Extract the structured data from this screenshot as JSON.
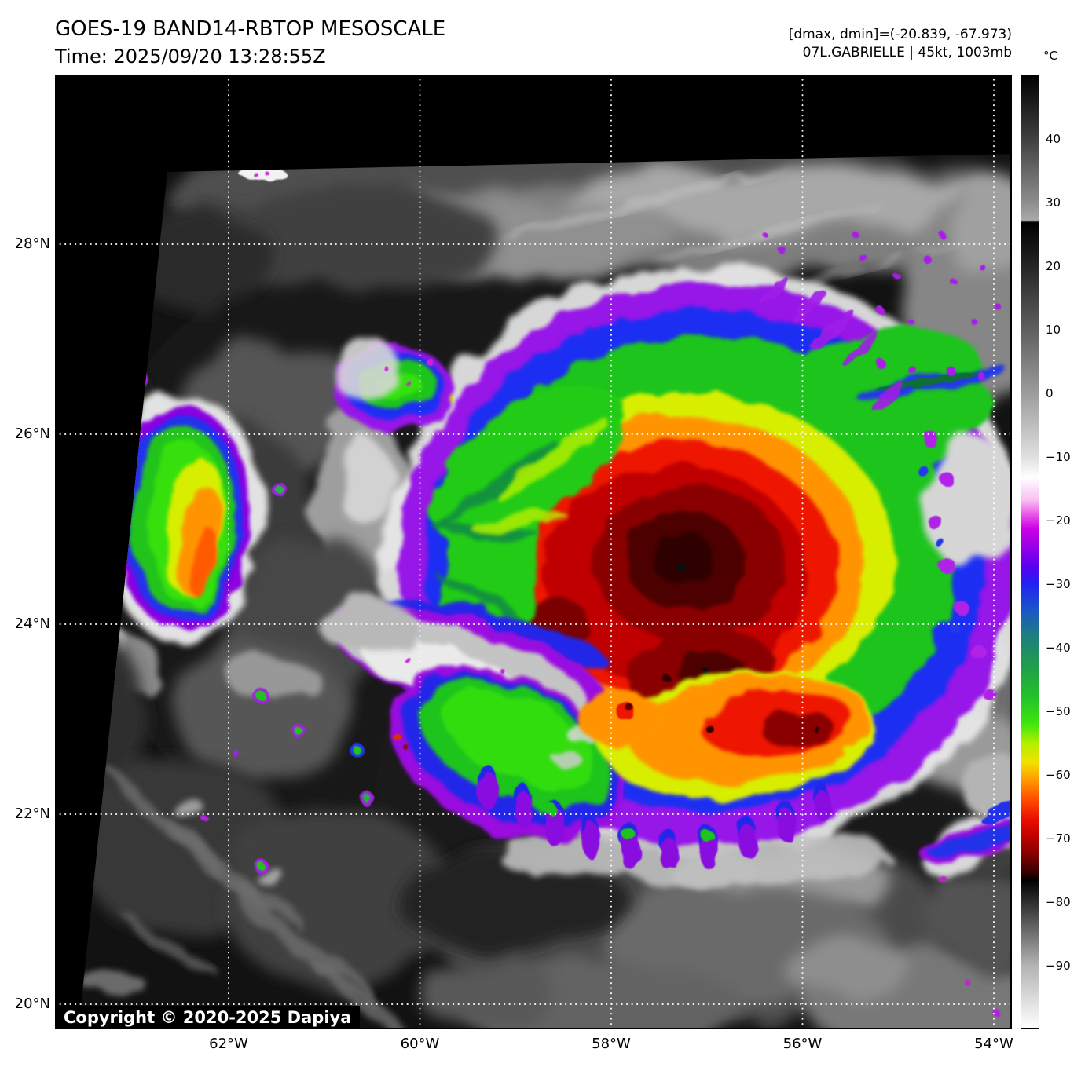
{
  "header": {
    "title": "GOES-19 BAND14-RBTOP MESOSCALE",
    "time_line": "Time: 2025/09/20 13:28:55Z",
    "stats_line": "[dmax, dmin]=(-20.839, -67.973)",
    "storm_line": "07L.GABRIELLE | 45kt, 1003mb"
  },
  "colorbar": {
    "unit_label": "°C",
    "ticks": [
      "40",
      "30",
      "20",
      "10",
      "0",
      "−10",
      "−20",
      "−30",
      "−40",
      "−50",
      "−60",
      "−70",
      "−80",
      "−90"
    ]
  },
  "map": {
    "lat_labels": [
      "28°N",
      "26°N",
      "24°N",
      "22°N",
      "20°N"
    ],
    "lon_labels": [
      "62°W",
      "60°W",
      "58°W",
      "56°W",
      "54°W"
    ],
    "copyright": "Copyright © 2020-2025 Dapiya"
  }
}
